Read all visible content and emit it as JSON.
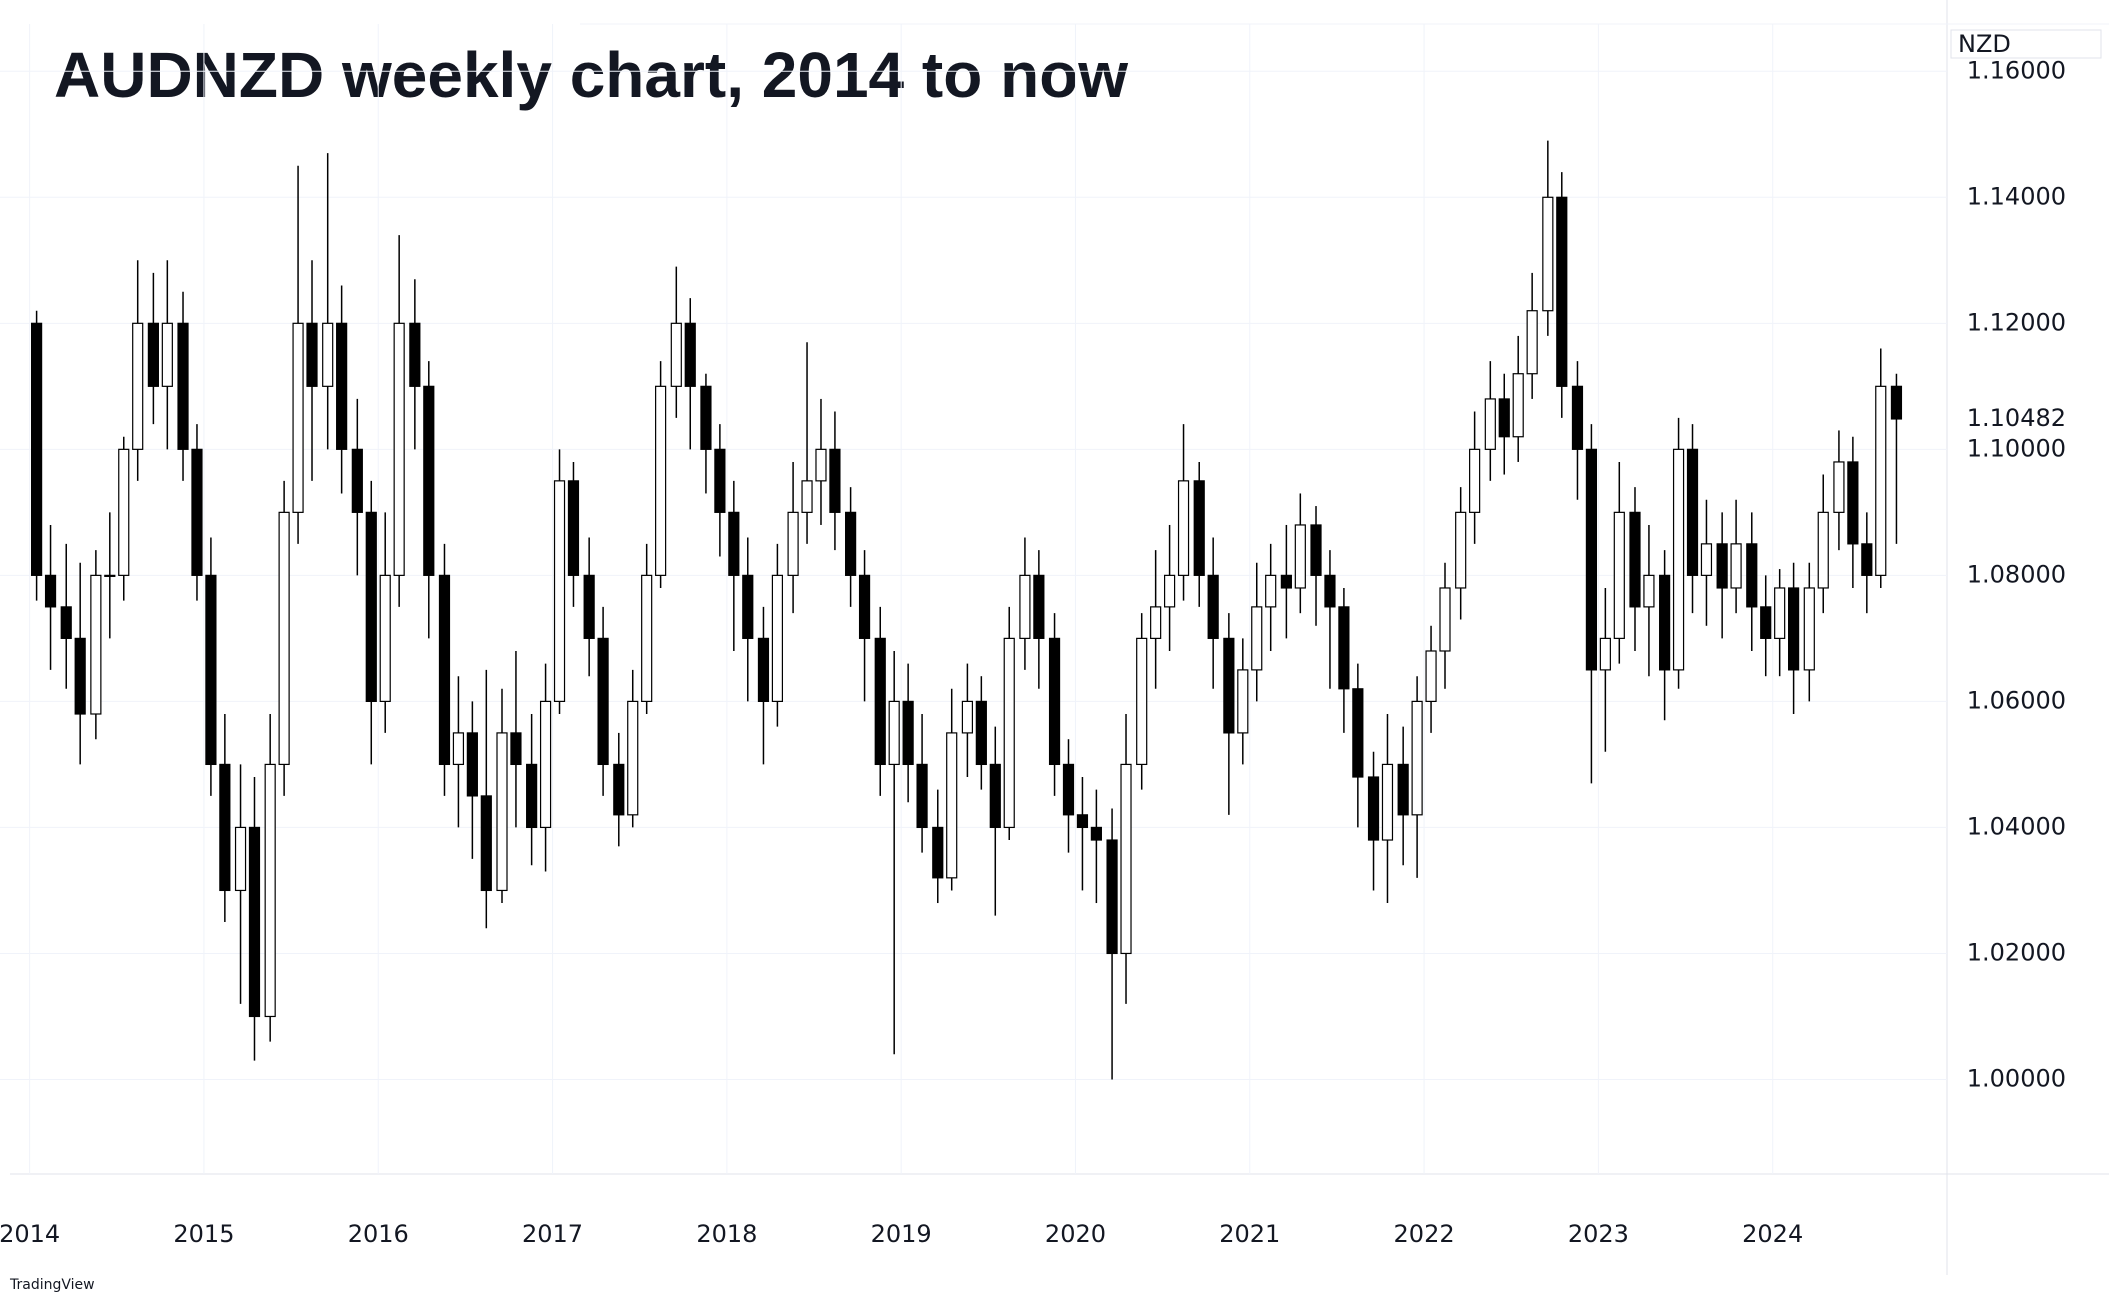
{
  "chart_data": {
    "type": "candlestick",
    "title": "AUDNZD weekly chart, 2014 to now",
    "currency": "NZD",
    "last_price": 1.10482,
    "watermark": "TradingView",
    "up_color": "#ffffff",
    "down_color": "#000000",
    "wick_color": "#000000",
    "grid": true,
    "xlim": [
      2013.83,
      2025.0
    ],
    "xticks": [
      2014,
      2015,
      2016,
      2017,
      2018,
      2019,
      2020,
      2021,
      2022,
      2023,
      2024
    ],
    "ylim": [
      0.985,
      1.1675
    ],
    "yticks": [
      {
        "value": 1.0,
        "label": "1.00000"
      },
      {
        "value": 1.02,
        "label": "1.02000"
      },
      {
        "value": 1.04,
        "label": "1.04000"
      },
      {
        "value": 1.06,
        "label": "1.06000"
      },
      {
        "value": 1.08,
        "label": "1.08000"
      },
      {
        "value": 1.1,
        "label": "1.10000"
      },
      {
        "value": 1.12,
        "label": "1.12000"
      },
      {
        "value": 1.14,
        "label": "1.14000"
      },
      {
        "value": 1.16,
        "label": "1.16000"
      }
    ],
    "x": [
      2014.04,
      2014.12,
      2014.21,
      2014.29,
      2014.38,
      2014.46,
      2014.54,
      2014.62,
      2014.71,
      2014.79,
      2014.88,
      2014.96,
      2015.04,
      2015.12,
      2015.21,
      2015.29,
      2015.38,
      2015.46,
      2015.54,
      2015.62,
      2015.71,
      2015.79,
      2015.88,
      2015.96,
      2016.04,
      2016.12,
      2016.21,
      2016.29,
      2016.38,
      2016.46,
      2016.54,
      2016.62,
      2016.71,
      2016.79,
      2016.88,
      2016.96,
      2017.04,
      2017.12,
      2017.21,
      2017.29,
      2017.38,
      2017.46,
      2017.54,
      2017.62,
      2017.71,
      2017.79,
      2017.88,
      2017.96,
      2018.04,
      2018.12,
      2018.21,
      2018.29,
      2018.38,
      2018.46,
      2018.54,
      2018.62,
      2018.71,
      2018.79,
      2018.88,
      2018.96,
      2019.04,
      2019.12,
      2019.21,
      2019.29,
      2019.38,
      2019.46,
      2019.54,
      2019.62,
      2019.71,
      2019.79,
      2019.88,
      2019.96,
      2020.04,
      2020.12,
      2020.21,
      2020.29,
      2020.38,
      2020.46,
      2020.54,
      2020.62,
      2020.71,
      2020.79,
      2020.88,
      2020.96,
      2021.04,
      2021.12,
      2021.21,
      2021.29,
      2021.38,
      2021.46,
      2021.54,
      2021.62,
      2021.71,
      2021.79,
      2021.88,
      2021.96,
      2022.04,
      2022.12,
      2022.21,
      2022.29,
      2022.38,
      2022.46,
      2022.54,
      2022.62,
      2022.71,
      2022.79,
      2022.88,
      2022.96,
      2023.04,
      2023.12,
      2023.21,
      2023.29,
      2023.38,
      2023.46,
      2023.54,
      2023.62,
      2023.71,
      2023.79,
      2023.88,
      2023.96,
      2024.04,
      2024.12,
      2024.21,
      2024.29,
      2024.38,
      2024.46,
      2024.54,
      2024.62,
      2024.71
    ],
    "series": [
      {
        "name": "AUDNZD",
        "values": [
          [
            1.12,
            1.122,
            1.076,
            1.08
          ],
          [
            1.08,
            1.088,
            1.065,
            1.075
          ],
          [
            1.075,
            1.085,
            1.062,
            1.07
          ],
          [
            1.07,
            1.082,
            1.05,
            1.058
          ],
          [
            1.058,
            1.084,
            1.054,
            1.08
          ],
          [
            1.08,
            1.09,
            1.07,
            1.08
          ],
          [
            1.08,
            1.102,
            1.076,
            1.1
          ],
          [
            1.1,
            1.13,
            1.095,
            1.12
          ],
          [
            1.12,
            1.128,
            1.104,
            1.11
          ],
          [
            1.11,
            1.13,
            1.1,
            1.12
          ],
          [
            1.12,
            1.125,
            1.095,
            1.1
          ],
          [
            1.1,
            1.104,
            1.076,
            1.08
          ],
          [
            1.08,
            1.086,
            1.045,
            1.05
          ],
          [
            1.05,
            1.058,
            1.025,
            1.03
          ],
          [
            1.03,
            1.05,
            1.012,
            1.04
          ],
          [
            1.04,
            1.048,
            1.003,
            1.01
          ],
          [
            1.01,
            1.058,
            1.006,
            1.05
          ],
          [
            1.05,
            1.095,
            1.045,
            1.09
          ],
          [
            1.09,
            1.145,
            1.085,
            1.12
          ],
          [
            1.12,
            1.13,
            1.095,
            1.11
          ],
          [
            1.11,
            1.147,
            1.1,
            1.12
          ],
          [
            1.12,
            1.126,
            1.093,
            1.1
          ],
          [
            1.1,
            1.108,
            1.08,
            1.09
          ],
          [
            1.09,
            1.095,
            1.05,
            1.06
          ],
          [
            1.06,
            1.09,
            1.055,
            1.08
          ],
          [
            1.08,
            1.134,
            1.075,
            1.12
          ],
          [
            1.12,
            1.127,
            1.1,
            1.11
          ],
          [
            1.11,
            1.114,
            1.07,
            1.08
          ],
          [
            1.08,
            1.085,
            1.045,
            1.05
          ],
          [
            1.05,
            1.064,
            1.04,
            1.055
          ],
          [
            1.055,
            1.06,
            1.035,
            1.045
          ],
          [
            1.045,
            1.065,
            1.024,
            1.03
          ],
          [
            1.03,
            1.062,
            1.028,
            1.055
          ],
          [
            1.055,
            1.068,
            1.04,
            1.05
          ],
          [
            1.05,
            1.058,
            1.034,
            1.04
          ],
          [
            1.04,
            1.066,
            1.033,
            1.06
          ],
          [
            1.06,
            1.1,
            1.058,
            1.095
          ],
          [
            1.095,
            1.098,
            1.075,
            1.08
          ],
          [
            1.08,
            1.086,
            1.064,
            1.07
          ],
          [
            1.07,
            1.075,
            1.045,
            1.05
          ],
          [
            1.05,
            1.055,
            1.037,
            1.042
          ],
          [
            1.042,
            1.065,
            1.04,
            1.06
          ],
          [
            1.06,
            1.085,
            1.058,
            1.08
          ],
          [
            1.08,
            1.114,
            1.078,
            1.11
          ],
          [
            1.11,
            1.129,
            1.105,
            1.12
          ],
          [
            1.12,
            1.124,
            1.1,
            1.11
          ],
          [
            1.11,
            1.112,
            1.093,
            1.1
          ],
          [
            1.1,
            1.104,
            1.083,
            1.09
          ],
          [
            1.09,
            1.095,
            1.068,
            1.08
          ],
          [
            1.08,
            1.086,
            1.06,
            1.07
          ],
          [
            1.07,
            1.075,
            1.05,
            1.06
          ],
          [
            1.06,
            1.085,
            1.056,
            1.08
          ],
          [
            1.08,
            1.098,
            1.074,
            1.09
          ],
          [
            1.09,
            1.117,
            1.085,
            1.095
          ],
          [
            1.095,
            1.108,
            1.088,
            1.1
          ],
          [
            1.1,
            1.106,
            1.084,
            1.09
          ],
          [
            1.09,
            1.094,
            1.075,
            1.08
          ],
          [
            1.08,
            1.084,
            1.06,
            1.07
          ],
          [
            1.07,
            1.075,
            1.045,
            1.05
          ],
          [
            1.05,
            1.068,
            1.004,
            1.06
          ],
          [
            1.06,
            1.066,
            1.044,
            1.05
          ],
          [
            1.05,
            1.058,
            1.036,
            1.04
          ],
          [
            1.04,
            1.046,
            1.028,
            1.032
          ],
          [
            1.032,
            1.062,
            1.03,
            1.055
          ],
          [
            1.055,
            1.066,
            1.048,
            1.06
          ],
          [
            1.06,
            1.064,
            1.046,
            1.05
          ],
          [
            1.05,
            1.056,
            1.026,
            1.04
          ],
          [
            1.04,
            1.075,
            1.038,
            1.07
          ],
          [
            1.07,
            1.086,
            1.065,
            1.08
          ],
          [
            1.08,
            1.084,
            1.062,
            1.07
          ],
          [
            1.07,
            1.074,
            1.045,
            1.05
          ],
          [
            1.05,
            1.054,
            1.036,
            1.042
          ],
          [
            1.042,
            1.048,
            1.03,
            1.04
          ],
          [
            1.04,
            1.046,
            1.028,
            1.038
          ],
          [
            1.038,
            1.043,
            1.0,
            1.02
          ],
          [
            1.02,
            1.058,
            1.012,
            1.05
          ],
          [
            1.05,
            1.074,
            1.046,
            1.07
          ],
          [
            1.07,
            1.084,
            1.062,
            1.075
          ],
          [
            1.075,
            1.088,
            1.068,
            1.08
          ],
          [
            1.08,
            1.104,
            1.076,
            1.095
          ],
          [
            1.095,
            1.098,
            1.075,
            1.08
          ],
          [
            1.08,
            1.086,
            1.062,
            1.07
          ],
          [
            1.07,
            1.074,
            1.042,
            1.055
          ],
          [
            1.055,
            1.07,
            1.05,
            1.065
          ],
          [
            1.065,
            1.082,
            1.06,
            1.075
          ],
          [
            1.075,
            1.085,
            1.068,
            1.08
          ],
          [
            1.08,
            1.088,
            1.07,
            1.078
          ],
          [
            1.078,
            1.093,
            1.074,
            1.088
          ],
          [
            1.088,
            1.091,
            1.072,
            1.08
          ],
          [
            1.08,
            1.084,
            1.062,
            1.075
          ],
          [
            1.075,
            1.078,
            1.055,
            1.062
          ],
          [
            1.062,
            1.066,
            1.04,
            1.048
          ],
          [
            1.048,
            1.052,
            1.03,
            1.038
          ],
          [
            1.038,
            1.058,
            1.028,
            1.05
          ],
          [
            1.05,
            1.056,
            1.034,
            1.042
          ],
          [
            1.042,
            1.064,
            1.032,
            1.06
          ],
          [
            1.06,
            1.072,
            1.055,
            1.068
          ],
          [
            1.068,
            1.082,
            1.062,
            1.078
          ],
          [
            1.078,
            1.094,
            1.073,
            1.09
          ],
          [
            1.09,
            1.106,
            1.085,
            1.1
          ],
          [
            1.1,
            1.114,
            1.095,
            1.108
          ],
          [
            1.108,
            1.112,
            1.096,
            1.102
          ],
          [
            1.102,
            1.118,
            1.098,
            1.112
          ],
          [
            1.112,
            1.128,
            1.108,
            1.122
          ],
          [
            1.122,
            1.149,
            1.118,
            1.14
          ],
          [
            1.14,
            1.144,
            1.105,
            1.11
          ],
          [
            1.11,
            1.114,
            1.092,
            1.1
          ],
          [
            1.1,
            1.104,
            1.047,
            1.065
          ],
          [
            1.065,
            1.078,
            1.052,
            1.07
          ],
          [
            1.07,
            1.098,
            1.066,
            1.09
          ],
          [
            1.09,
            1.094,
            1.068,
            1.075
          ],
          [
            1.075,
            1.088,
            1.064,
            1.08
          ],
          [
            1.08,
            1.084,
            1.057,
            1.065
          ],
          [
            1.065,
            1.105,
            1.062,
            1.1
          ],
          [
            1.1,
            1.104,
            1.074,
            1.08
          ],
          [
            1.08,
            1.092,
            1.072,
            1.085
          ],
          [
            1.085,
            1.09,
            1.07,
            1.078
          ],
          [
            1.078,
            1.092,
            1.074,
            1.085
          ],
          [
            1.085,
            1.09,
            1.068,
            1.075
          ],
          [
            1.075,
            1.08,
            1.064,
            1.07
          ],
          [
            1.07,
            1.081,
            1.064,
            1.078
          ],
          [
            1.078,
            1.082,
            1.058,
            1.065
          ],
          [
            1.065,
            1.082,
            1.06,
            1.078
          ],
          [
            1.078,
            1.096,
            1.074,
            1.09
          ],
          [
            1.09,
            1.103,
            1.084,
            1.098
          ],
          [
            1.098,
            1.102,
            1.078,
            1.085
          ],
          [
            1.085,
            1.09,
            1.074,
            1.08
          ],
          [
            1.08,
            1.116,
            1.078,
            1.11
          ],
          [
            1.11,
            1.112,
            1.085,
            1.10482
          ]
        ]
      }
    ]
  }
}
